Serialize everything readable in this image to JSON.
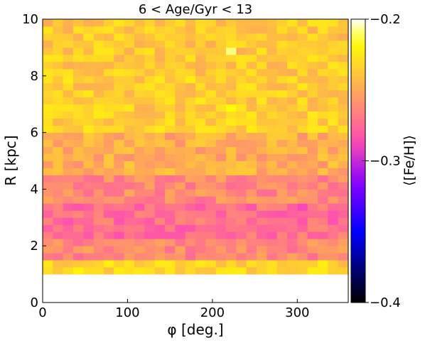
{
  "chart_data": {
    "type": "heatmap",
    "title": "6 < Age/Gyr < 13",
    "xlabel": "φ [deg.]",
    "ylabel": "R [kpc]",
    "colorbar_label": "⟨[Fe/H]⟩",
    "xlim": [
      0,
      360
    ],
    "ylim": [
      0,
      10
    ],
    "xticks": [
      0,
      100,
      200,
      300
    ],
    "yticks": [
      0,
      2,
      4,
      6,
      8,
      10
    ],
    "colorbar_range": [
      -0.4,
      -0.2
    ],
    "colorbar_ticks": [
      -0.2,
      -0.3,
      -0.4
    ],
    "colormap": "gnuplot2",
    "x_bins": 30,
    "y_bins": 40,
    "bin_width_deg": 12,
    "bin_height_kpc": 0.25,
    "empty_rows_below_R": 1.0,
    "approximate_profile_by_R": [
      {
        "R_range": [
          1.0,
          1.5
        ],
        "mean_feh": -0.233
      },
      {
        "R_range": [
          1.5,
          2.25
        ],
        "mean_feh": -0.262
      },
      {
        "R_range": [
          2.25,
          3.5
        ],
        "mean_feh": -0.273
      },
      {
        "R_range": [
          3.5,
          4.5
        ],
        "mean_feh": -0.262
      },
      {
        "R_range": [
          4.5,
          6.0
        ],
        "mean_feh": -0.248
      },
      {
        "R_range": [
          6.0,
          8.0
        ],
        "mean_feh": -0.235
      },
      {
        "R_range": [
          8.0,
          10.0
        ],
        "mean_feh": -0.237
      }
    ],
    "notable_cells": [
      {
        "phi": 222,
        "R": 8.85,
        "feh": -0.208
      },
      {
        "phi": 222,
        "R": 6.85,
        "feh": -0.217
      },
      {
        "phi": 300,
        "R": 3.35,
        "feh": -0.288
      }
    ]
  }
}
